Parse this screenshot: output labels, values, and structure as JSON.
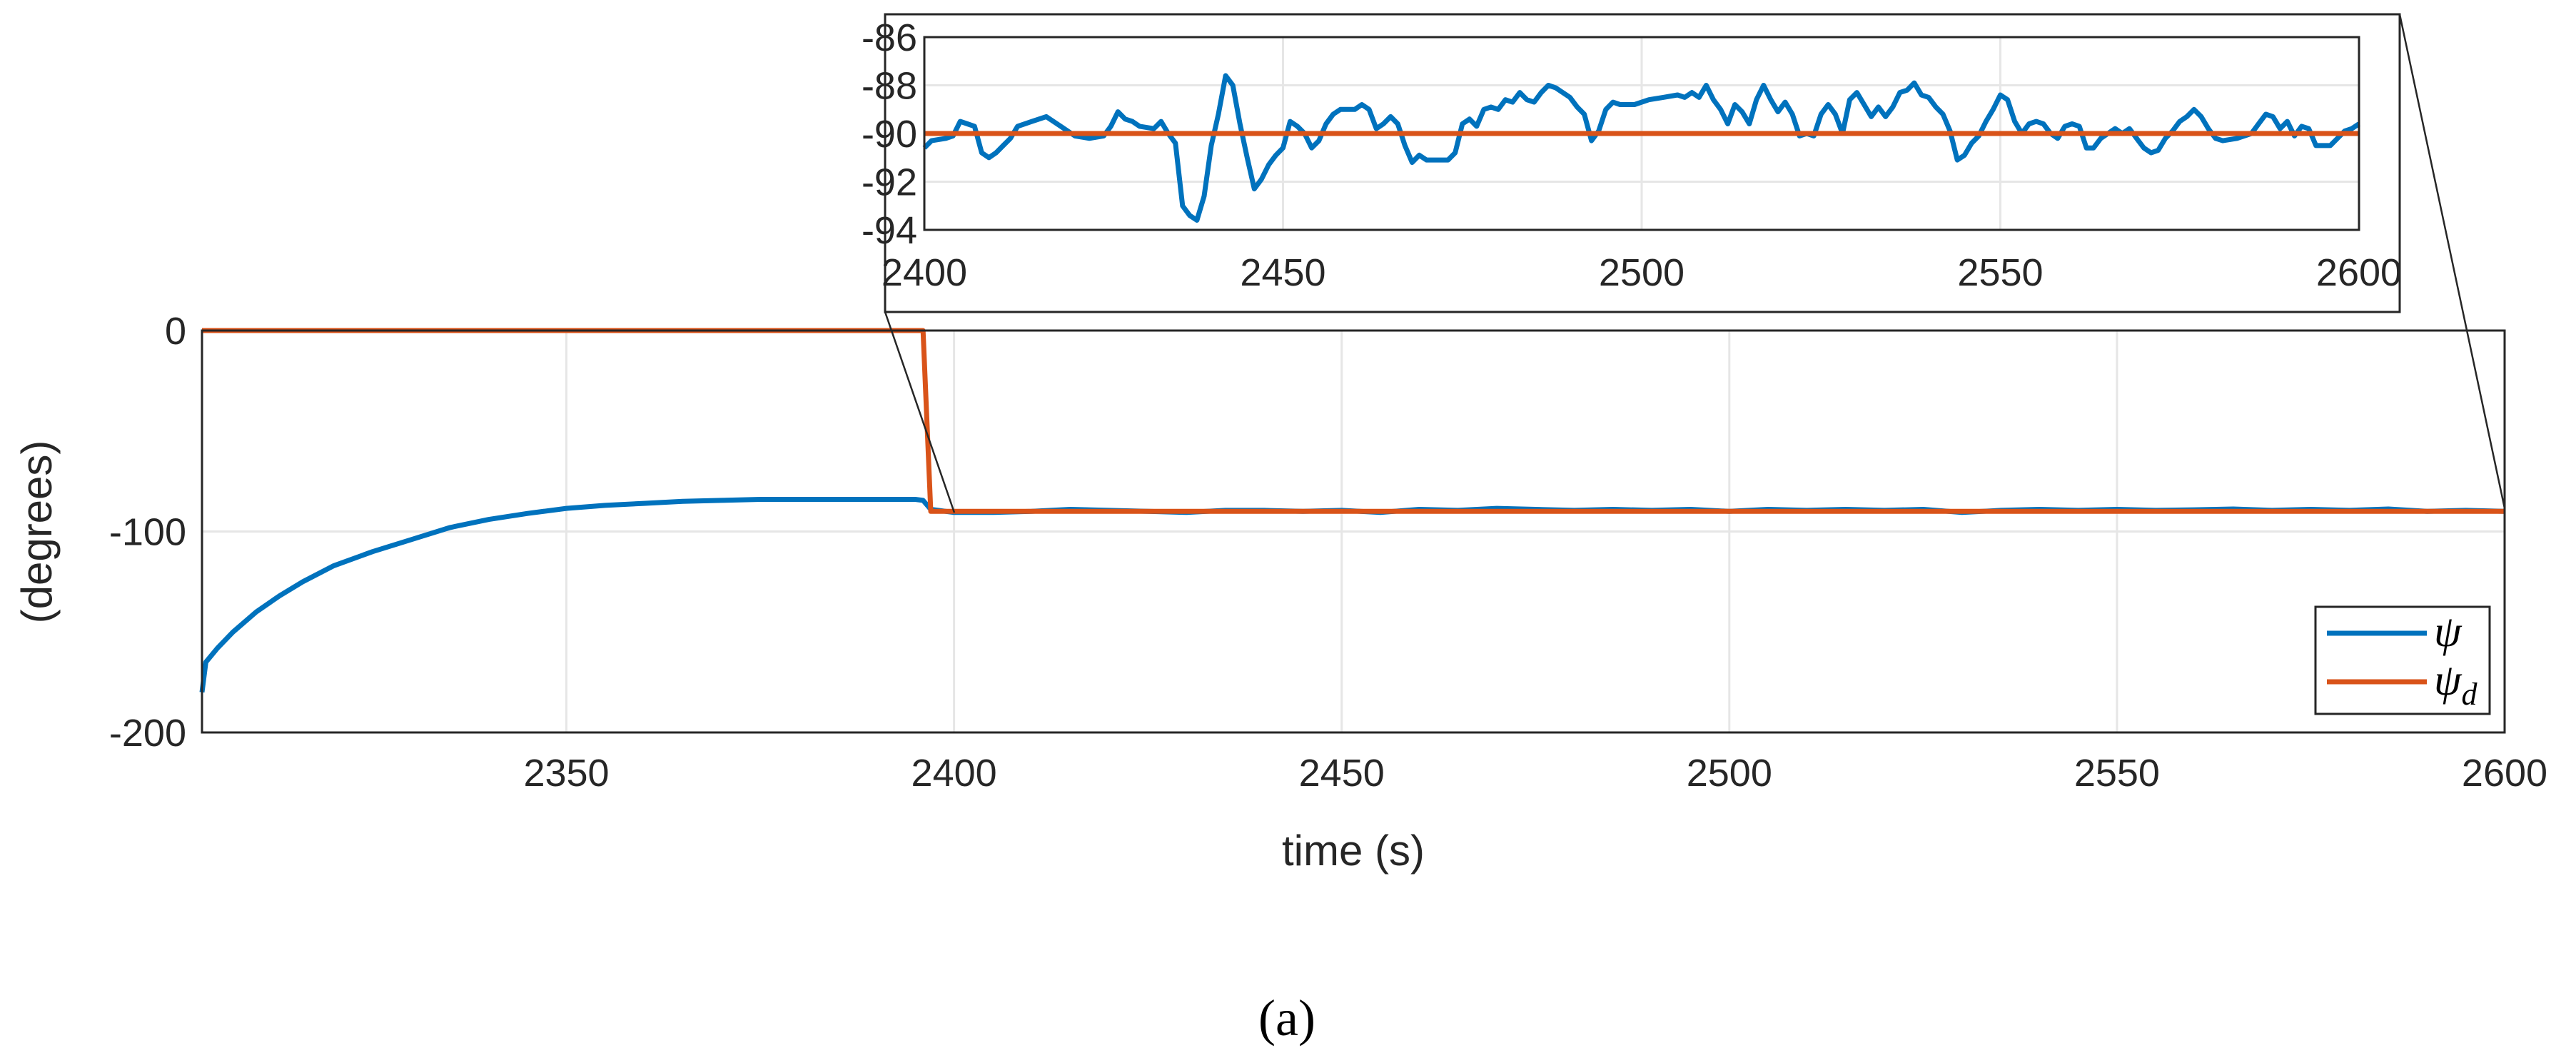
{
  "chart_data": [
    {
      "id": "main",
      "type": "line",
      "xlabel": "time (s)",
      "ylabel": "(degrees)",
      "xlim": [
        2303,
        2600
      ],
      "ylim": [
        -200,
        0
      ],
      "xticks": [
        2350,
        2400,
        2450,
        2500,
        2550,
        2600
      ],
      "yticks": [
        0,
        -100,
        -200
      ],
      "grid": true,
      "legend": {
        "placement": "bottom-right"
      },
      "series": [
        {
          "key": "psi",
          "name": "ψ",
          "color": "#0072BD",
          "points": [
            [
              2303,
              -180
            ],
            [
              2303.5,
              -165
            ],
            [
              2305,
              -158
            ],
            [
              2307,
              -150
            ],
            [
              2310,
              -140
            ],
            [
              2313,
              -132
            ],
            [
              2316,
              -125
            ],
            [
              2320,
              -117
            ],
            [
              2325,
              -110
            ],
            [
              2330,
              -104
            ],
            [
              2335,
              -98
            ],
            [
              2340,
              -94
            ],
            [
              2345,
              -91
            ],
            [
              2350,
              -88.5
            ],
            [
              2355,
              -87
            ],
            [
              2360,
              -86
            ],
            [
              2365,
              -85
            ],
            [
              2370,
              -84.5
            ],
            [
              2375,
              -84
            ],
            [
              2380,
              -84
            ],
            [
              2385,
              -84
            ],
            [
              2390,
              -84
            ],
            [
              2395,
              -84
            ],
            [
              2396,
              -84.5
            ],
            [
              2397,
              -89
            ],
            [
              2400,
              -90.5
            ],
            [
              2405,
              -90.5
            ],
            [
              2410,
              -90
            ],
            [
              2415,
              -89
            ],
            [
              2420,
              -89.5
            ],
            [
              2425,
              -90
            ],
            [
              2430,
              -90.5
            ],
            [
              2435,
              -89.5
            ],
            [
              2440,
              -89.5
            ],
            [
              2445,
              -90
            ],
            [
              2450,
              -89.5
            ],
            [
              2455,
              -90.5
            ],
            [
              2460,
              -89
            ],
            [
              2465,
              -89.5
            ],
            [
              2470,
              -88.5
            ],
            [
              2475,
              -89
            ],
            [
              2480,
              -89.5
            ],
            [
              2485,
              -89
            ],
            [
              2490,
              -89.5
            ],
            [
              2495,
              -89
            ],
            [
              2500,
              -90
            ],
            [
              2505,
              -89
            ],
            [
              2510,
              -89.5
            ],
            [
              2515,
              -89
            ],
            [
              2520,
              -89.5
            ],
            [
              2525,
              -89
            ],
            [
              2530,
              -90.5
            ],
            [
              2535,
              -89.5
            ],
            [
              2540,
              -89
            ],
            [
              2545,
              -89.5
            ],
            [
              2550,
              -89
            ],
            [
              2555,
              -89.5
            ],
            [
              2560,
              -89.2
            ],
            [
              2565,
              -88.8
            ],
            [
              2570,
              -89.5
            ],
            [
              2575,
              -89
            ],
            [
              2580,
              -89.5
            ],
            [
              2585,
              -88.8
            ],
            [
              2590,
              -90
            ],
            [
              2595,
              -89.5
            ],
            [
              2600,
              -90
            ]
          ]
        },
        {
          "key": "psid",
          "name": "ψ",
          "subscript": "d",
          "color": "#D95319",
          "points": [
            [
              2303,
              0
            ],
            [
              2396,
              0
            ],
            [
              2397,
              -90
            ],
            [
              2600,
              -90
            ]
          ]
        }
      ]
    },
    {
      "id": "inset",
      "type": "line",
      "xlim": [
        2400,
        2600
      ],
      "ylim": [
        -94,
        -86
      ],
      "xticks": [
        2400,
        2450,
        2500,
        2550,
        2600
      ],
      "yticks": [
        -86,
        -88,
        -90,
        -92,
        -94
      ],
      "grid": true,
      "series": [
        {
          "key": "psi",
          "color": "#0072BD",
          "points": [
            [
              2400,
              -90.6
            ],
            [
              2401,
              -90.3
            ],
            [
              2403,
              -90.2
            ],
            [
              2404,
              -90.1
            ],
            [
              2405,
              -89.5
            ],
            [
              2406,
              -89.6
            ],
            [
              2407,
              -89.7
            ],
            [
              2408,
              -90.8
            ],
            [
              2409,
              -91.0
            ],
            [
              2410,
              -90.8
            ],
            [
              2411,
              -90.5
            ],
            [
              2412,
              -90.2
            ],
            [
              2413,
              -89.7
            ],
            [
              2415,
              -89.5
            ],
            [
              2417,
              -89.3
            ],
            [
              2419,
              -89.7
            ],
            [
              2421,
              -90.1
            ],
            [
              2423,
              -90.2
            ],
            [
              2425,
              -90.1
            ],
            [
              2426,
              -89.7
            ],
            [
              2427,
              -89.1
            ],
            [
              2428,
              -89.4
            ],
            [
              2429,
              -89.5
            ],
            [
              2430,
              -89.7
            ],
            [
              2432,
              -89.8
            ],
            [
              2433,
              -89.5
            ],
            [
              2434,
              -90.0
            ],
            [
              2435,
              -90.4
            ],
            [
              2436,
              -93.0
            ],
            [
              2437,
              -93.4
            ],
            [
              2438,
              -93.6
            ],
            [
              2439,
              -92.6
            ],
            [
              2440,
              -90.5
            ],
            [
              2441,
              -89.2
            ],
            [
              2442,
              -87.6
            ],
            [
              2443,
              -88.0
            ],
            [
              2444,
              -89.6
            ],
            [
              2445,
              -91.0
            ],
            [
              2446,
              -92.3
            ],
            [
              2447,
              -91.9
            ],
            [
              2448,
              -91.3
            ],
            [
              2449,
              -90.9
            ],
            [
              2450,
              -90.6
            ],
            [
              2451,
              -89.5
            ],
            [
              2452,
              -89.7
            ],
            [
              2453,
              -90.0
            ],
            [
              2454,
              -90.6
            ],
            [
              2455,
              -90.3
            ],
            [
              2456,
              -89.6
            ],
            [
              2457,
              -89.2
            ],
            [
              2458,
              -89.0
            ],
            [
              2459,
              -89.0
            ],
            [
              2460,
              -89.0
            ],
            [
              2461,
              -88.8
            ],
            [
              2462,
              -89.0
            ],
            [
              2463,
              -89.8
            ],
            [
              2464,
              -89.6
            ],
            [
              2465,
              -89.3
            ],
            [
              2466,
              -89.6
            ],
            [
              2467,
              -90.5
            ],
            [
              2468,
              -91.2
            ],
            [
              2469,
              -90.9
            ],
            [
              2470,
              -91.1
            ],
            [
              2471,
              -91.1
            ],
            [
              2472,
              -91.1
            ],
            [
              2473,
              -91.1
            ],
            [
              2474,
              -90.8
            ],
            [
              2475,
              -89.6
            ],
            [
              2476,
              -89.4
            ],
            [
              2477,
              -89.7
            ],
            [
              2478,
              -89.0
            ],
            [
              2479,
              -88.9
            ],
            [
              2480,
              -89.0
            ],
            [
              2481,
              -88.6
            ],
            [
              2482,
              -88.7
            ],
            [
              2483,
              -88.3
            ],
            [
              2484,
              -88.6
            ],
            [
              2485,
              -88.7
            ],
            [
              2486,
              -88.3
            ],
            [
              2487,
              -88.0
            ],
            [
              2488,
              -88.1
            ],
            [
              2489,
              -88.3
            ],
            [
              2490,
              -88.5
            ],
            [
              2491,
              -88.9
            ],
            [
              2492,
              -89.2
            ],
            [
              2493,
              -90.3
            ],
            [
              2494,
              -89.9
            ],
            [
              2495,
              -89.0
            ],
            [
              2496,
              -88.7
            ],
            [
              2497,
              -88.8
            ],
            [
              2499,
              -88.8
            ],
            [
              2501,
              -88.6
            ],
            [
              2503,
              -88.5
            ],
            [
              2505,
              -88.4
            ],
            [
              2506,
              -88.5
            ],
            [
              2507,
              -88.3
            ],
            [
              2508,
              -88.5
            ],
            [
              2509,
              -88.0
            ],
            [
              2510,
              -88.6
            ],
            [
              2511,
              -89.0
            ],
            [
              2512,
              -89.6
            ],
            [
              2513,
              -88.8
            ],
            [
              2514,
              -89.1
            ],
            [
              2515,
              -89.6
            ],
            [
              2516,
              -88.6
            ],
            [
              2517,
              -88.0
            ],
            [
              2518,
              -88.6
            ],
            [
              2519,
              -89.1
            ],
            [
              2520,
              -88.7
            ],
            [
              2521,
              -89.2
            ],
            [
              2522,
              -90.1
            ],
            [
              2523,
              -90.0
            ],
            [
              2524,
              -90.1
            ],
            [
              2525,
              -89.2
            ],
            [
              2526,
              -88.8
            ],
            [
              2527,
              -89.2
            ],
            [
              2528,
              -90.0
            ],
            [
              2529,
              -88.6
            ],
            [
              2530,
              -88.3
            ],
            [
              2531,
              -88.8
            ],
            [
              2532,
              -89.3
            ],
            [
              2533,
              -88.9
            ],
            [
              2534,
              -89.3
            ],
            [
              2535,
              -88.9
            ],
            [
              2536,
              -88.3
            ],
            [
              2537,
              -88.2
            ],
            [
              2538,
              -87.9
            ],
            [
              2539,
              -88.4
            ],
            [
              2540,
              -88.5
            ],
            [
              2541,
              -88.9
            ],
            [
              2542,
              -89.2
            ],
            [
              2543,
              -89.9
            ],
            [
              2544,
              -91.1
            ],
            [
              2545,
              -90.9
            ],
            [
              2546,
              -90.4
            ],
            [
              2547,
              -90.1
            ],
            [
              2548,
              -89.5
            ],
            [
              2549,
              -89.0
            ],
            [
              2550,
              -88.4
            ],
            [
              2551,
              -88.6
            ],
            [
              2552,
              -89.5
            ],
            [
              2553,
              -90.0
            ],
            [
              2554,
              -89.6
            ],
            [
              2555,
              -89.5
            ],
            [
              2556,
              -89.6
            ],
            [
              2557,
              -90.0
            ],
            [
              2558,
              -90.2
            ],
            [
              2559,
              -89.7
            ],
            [
              2560,
              -89.6
            ],
            [
              2561,
              -89.7
            ],
            [
              2562,
              -90.6
            ],
            [
              2563,
              -90.6
            ],
            [
              2564,
              -90.2
            ],
            [
              2565,
              -90.0
            ],
            [
              2566,
              -89.8
            ],
            [
              2567,
              -90.0
            ],
            [
              2568,
              -89.8
            ],
            [
              2569,
              -90.2
            ],
            [
              2570,
              -90.6
            ],
            [
              2571,
              -90.8
            ],
            [
              2572,
              -90.7
            ],
            [
              2573,
              -90.2
            ],
            [
              2574,
              -89.9
            ],
            [
              2575,
              -89.5
            ],
            [
              2576,
              -89.3
            ],
            [
              2577,
              -89.0
            ],
            [
              2578,
              -89.3
            ],
            [
              2579,
              -89.8
            ],
            [
              2580,
              -90.2
            ],
            [
              2581,
              -90.3
            ],
            [
              2583,
              -90.2
            ],
            [
              2585,
              -90.0
            ],
            [
              2586,
              -89.6
            ],
            [
              2587,
              -89.2
            ],
            [
              2588,
              -89.3
            ],
            [
              2589,
              -89.8
            ],
            [
              2590,
              -89.5
            ],
            [
              2591,
              -90.1
            ],
            [
              2592,
              -89.7
            ],
            [
              2593,
              -89.8
            ],
            [
              2594,
              -90.5
            ],
            [
              2595,
              -90.5
            ],
            [
              2596,
              -90.5
            ],
            [
              2597,
              -90.2
            ],
            [
              2598,
              -89.9
            ],
            [
              2599,
              -89.8
            ],
            [
              2600,
              -89.6
            ]
          ]
        },
        {
          "key": "psid",
          "color": "#D95319",
          "points": [
            [
              2400,
              -90
            ],
            [
              2600,
              -90
            ]
          ]
        }
      ]
    }
  ],
  "caption": "(a)"
}
